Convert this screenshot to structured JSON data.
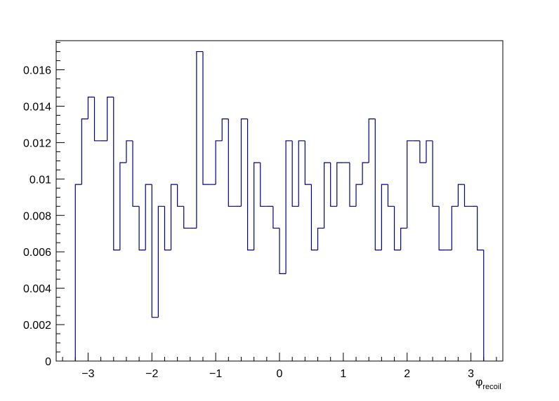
{
  "chart_data": {
    "type": "histogram",
    "title": "",
    "xlabel_main": "φ",
    "xlabel_sub": "recoil",
    "ylabel": "",
    "xlim": [
      -3.5,
      3.5
    ],
    "ylim": [
      0,
      0.0176
    ],
    "grid": false,
    "legend": "none",
    "line_color": "#000080",
    "x_ticks": [
      {
        "value": -3,
        "label": "−3"
      },
      {
        "value": -2,
        "label": "−2"
      },
      {
        "value": -1,
        "label": "−1"
      },
      {
        "value": 0,
        "label": "0"
      },
      {
        "value": 1,
        "label": "1"
      },
      {
        "value": 2,
        "label": "2"
      },
      {
        "value": 3,
        "label": "3"
      }
    ],
    "y_ticks": [
      {
        "value": 0,
        "label": "0"
      },
      {
        "value": 0.002,
        "label": "0.002"
      },
      {
        "value": 0.004,
        "label": "0.004"
      },
      {
        "value": 0.006,
        "label": "0.006"
      },
      {
        "value": 0.008,
        "label": "0.008"
      },
      {
        "value": 0.01,
        "label": "0.01"
      },
      {
        "value": 0.012,
        "label": "0.012"
      },
      {
        "value": 0.014,
        "label": "0.014"
      },
      {
        "value": 0.016,
        "label": "0.016"
      }
    ],
    "bin_edges_start": -3.2,
    "bin_width": 0.1,
    "values": [
      0.0097,
      0.0133,
      0.0145,
      0.0121,
      0.0121,
      0.0145,
      0.0061,
      0.0109,
      0.0121,
      0.0085,
      0.0061,
      0.0097,
      0.0024,
      0.0085,
      0.0061,
      0.0097,
      0.0085,
      0.0073,
      0.0073,
      0.017,
      0.0097,
      0.0097,
      0.0121,
      0.0133,
      0.0085,
      0.0085,
      0.0133,
      0.0061,
      0.0109,
      0.0085,
      0.0085,
      0.0073,
      0.0048,
      0.0121,
      0.0085,
      0.0121,
      0.0097,
      0.0061,
      0.0073,
      0.0109,
      0.0085,
      0.0109,
      0.0109,
      0.0085,
      0.0097,
      0.0109,
      0.0133,
      0.0061,
      0.0097,
      0.0085,
      0.0061,
      0.0073,
      0.0121,
      0.0121,
      0.0109,
      0.0121,
      0.0085,
      0.0061,
      0.0061,
      0.0085,
      0.0097,
      0.0085,
      0.0085,
      0.0061
    ]
  }
}
